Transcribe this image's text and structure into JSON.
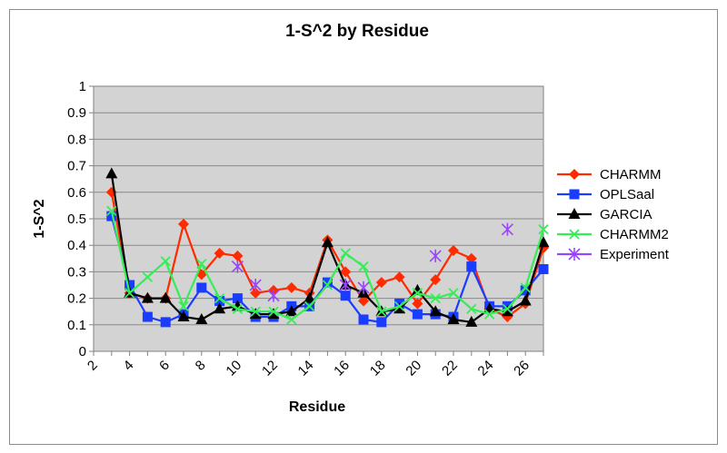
{
  "chart_data": {
    "type": "line",
    "title": "1-S^2 by Residue",
    "xlabel": "Residue",
    "ylabel": "1-S^2",
    "ylim": [
      0,
      1
    ],
    "yticks": [
      "0",
      "0.1",
      "0.2",
      "0.3",
      "0.4",
      "0.5",
      "0.6",
      "0.7",
      "0.8",
      "0.9",
      "1"
    ],
    "xlim": [
      2,
      27
    ],
    "xticks": [
      "2",
      "4",
      "6",
      "8",
      "10",
      "12",
      "14",
      "16",
      "18",
      "20",
      "22",
      "24",
      "26"
    ],
    "grid": true,
    "legend_position": "right",
    "x": [
      3,
      4,
      5,
      6,
      7,
      8,
      9,
      10,
      11,
      12,
      13,
      14,
      15,
      16,
      17,
      18,
      19,
      20,
      21,
      22,
      23,
      24,
      25,
      26,
      27
    ],
    "series": [
      {
        "name": "CHARMM",
        "color": "#ff2a00",
        "marker": "diamond",
        "values": [
          0.6,
          0.22,
          0.2,
          0.2,
          0.48,
          0.29,
          0.37,
          0.36,
          0.22,
          0.23,
          0.24,
          0.22,
          0.42,
          0.3,
          0.19,
          0.26,
          0.28,
          0.18,
          0.27,
          0.38,
          0.35,
          0.16,
          0.13,
          0.18,
          0.39
        ]
      },
      {
        "name": "OPLSaal",
        "color": "#1a3cff",
        "marker": "square",
        "values": [
          0.51,
          0.25,
          0.13,
          0.11,
          0.14,
          0.24,
          0.19,
          0.2,
          0.13,
          0.13,
          0.17,
          0.17,
          0.26,
          0.21,
          0.12,
          0.11,
          0.18,
          0.14,
          0.14,
          0.13,
          0.32,
          0.17,
          0.17,
          0.23,
          0.31
        ]
      },
      {
        "name": "GARCIA",
        "color": "#000000",
        "marker": "triangle",
        "values": [
          0.67,
          0.22,
          0.2,
          0.2,
          0.13,
          0.12,
          0.16,
          0.17,
          0.14,
          0.14,
          0.15,
          0.2,
          0.41,
          0.25,
          0.22,
          0.15,
          0.16,
          0.23,
          0.15,
          0.12,
          0.11,
          0.16,
          0.15,
          0.19,
          0.41
        ]
      },
      {
        "name": "CHARMM2",
        "color": "#33ee55",
        "marker": "x",
        "values": [
          0.53,
          0.22,
          0.28,
          0.34,
          0.17,
          0.33,
          0.2,
          0.16,
          0.15,
          0.15,
          0.12,
          0.17,
          0.25,
          0.37,
          0.32,
          0.15,
          0.17,
          0.22,
          0.2,
          0.22,
          0.16,
          0.14,
          0.16,
          0.24,
          0.46
        ]
      },
      {
        "name": "Experiment",
        "color": "#9944ff",
        "marker": "asterisk",
        "points": [
          [
            10,
            0.32
          ],
          [
            11,
            0.25
          ],
          [
            12,
            0.21
          ],
          [
            16,
            0.25
          ],
          [
            17,
            0.24
          ],
          [
            21,
            0.36
          ],
          [
            25,
            0.46
          ]
        ]
      }
    ]
  }
}
